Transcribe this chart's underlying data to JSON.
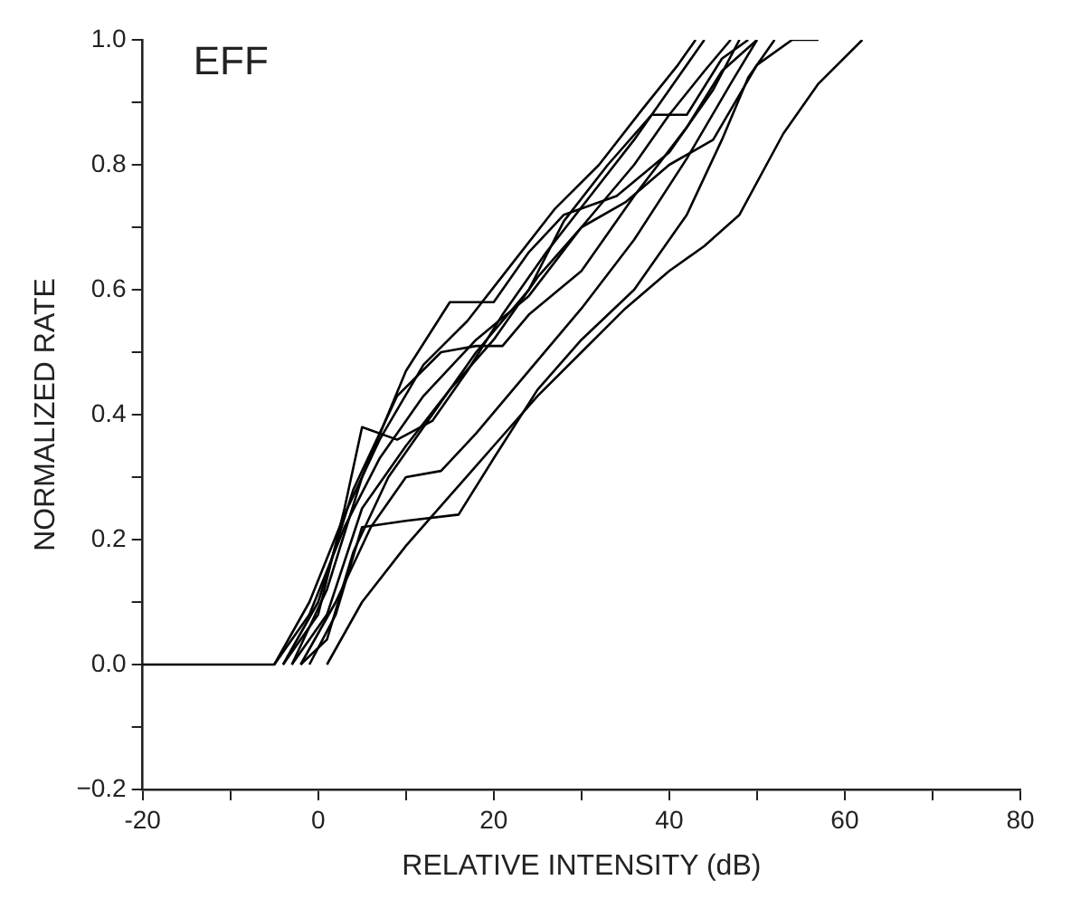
{
  "chart_data": {
    "type": "line",
    "title": "EFF",
    "xlabel": "RELATIVE INTENSITY (dB)",
    "ylabel": "NORMALIZED RATE",
    "xlim": [
      -20,
      80
    ],
    "ylim": [
      -0.2,
      1.0
    ],
    "xticks": [
      -20,
      {
        "value": -10,
        "label": null
      },
      0,
      {
        "value": 10,
        "label": null
      },
      20,
      {
        "value": 30,
        "label": null
      },
      40,
      {
        "value": 50,
        "label": null
      },
      60,
      {
        "value": 70,
        "label": null
      },
      80
    ],
    "yticks": [
      {
        "value": -0.2,
        "label": "−0.2"
      },
      {
        "value": -0.1,
        "label": null
      },
      {
        "value": 0,
        "label": "0.0"
      },
      {
        "value": 0.1,
        "label": null
      },
      {
        "value": 0.2,
        "label": "0.2"
      },
      {
        "value": 0.3,
        "label": null
      },
      {
        "value": 0.4,
        "label": "0.4"
      },
      {
        "value": 0.5,
        "label": null
      },
      {
        "value": 0.6,
        "label": "0.6"
      },
      {
        "value": 0.7,
        "label": null
      },
      {
        "value": 0.8,
        "label": "0.8"
      },
      {
        "value": 0.9,
        "label": null
      },
      {
        "value": 1.0,
        "label": "1.0"
      }
    ],
    "grid": false,
    "legend": false,
    "marker": "none",
    "line_style": "solid",
    "series": [
      {
        "color": "#000000",
        "x": [
          -20,
          -5,
          -1,
          3,
          7,
          12,
          17,
          22,
          27,
          32,
          37,
          41,
          43
        ],
        "values": [
          0,
          0,
          0.1,
          0.24,
          0.36,
          0.48,
          0.55,
          0.64,
          0.73,
          0.8,
          0.89,
          0.96,
          1.0
        ]
      },
      {
        "color": "#000000",
        "x": [
          -4,
          0,
          3,
          5,
          9,
          13,
          17,
          21,
          26,
          31,
          36,
          40,
          44
        ],
        "values": [
          0,
          0.08,
          0.25,
          0.38,
          0.36,
          0.39,
          0.47,
          0.56,
          0.66,
          0.75,
          0.84,
          0.92,
          1.0
        ]
      },
      {
        "color": "#000000",
        "x": [
          -3,
          1,
          5,
          10,
          15,
          20,
          24,
          28,
          34,
          40,
          45,
          48
        ],
        "values": [
          0,
          0.12,
          0.3,
          0.47,
          0.58,
          0.58,
          0.66,
          0.72,
          0.75,
          0.82,
          0.92,
          1.0
        ]
      },
      {
        "color": "#000000",
        "x": [
          -4,
          0,
          4,
          9,
          14,
          18,
          21,
          24,
          30,
          36,
          42,
          46,
          50
        ],
        "values": [
          0,
          0.1,
          0.28,
          0.43,
          0.5,
          0.51,
          0.51,
          0.56,
          0.63,
          0.75,
          0.86,
          0.95,
          1.0
        ]
      },
      {
        "color": "#000000",
        "x": [
          -2,
          2,
          6,
          10,
          14,
          18,
          24,
          30,
          36,
          42,
          47,
          50
        ],
        "values": [
          0,
          0.1,
          0.22,
          0.3,
          0.31,
          0.37,
          0.47,
          0.57,
          0.68,
          0.81,
          0.93,
          1.0
        ]
      },
      {
        "color": "#000000",
        "x": [
          -1,
          2,
          5,
          10,
          16,
          20,
          25,
          30,
          36,
          42,
          46,
          49,
          52
        ],
        "values": [
          0,
          0.08,
          0.22,
          0.23,
          0.24,
          0.33,
          0.44,
          0.52,
          0.6,
          0.72,
          0.84,
          0.94,
          1.0
        ]
      },
      {
        "color": "#000000",
        "x": [
          1,
          5,
          10,
          15,
          20,
          25,
          30,
          35,
          40,
          44,
          48,
          53,
          57,
          62
        ],
        "values": [
          0,
          0.1,
          0.19,
          0.27,
          0.35,
          0.43,
          0.5,
          0.57,
          0.63,
          0.67,
          0.72,
          0.85,
          0.93,
          1.0
        ]
      },
      {
        "color": "#000000",
        "x": [
          -3,
          1,
          5,
          10,
          15,
          20,
          25,
          30,
          35,
          40,
          45,
          50,
          54,
          57
        ],
        "values": [
          0,
          0.08,
          0.25,
          0.35,
          0.44,
          0.52,
          0.62,
          0.7,
          0.74,
          0.8,
          0.84,
          0.96,
          1.0,
          1.0
        ]
      },
      {
        "color": "#000000",
        "x": [
          -2,
          1,
          4,
          8,
          12,
          18,
          24,
          28,
          33,
          38,
          42,
          46,
          49
        ],
        "values": [
          0,
          0.04,
          0.18,
          0.3,
          0.38,
          0.5,
          0.6,
          0.71,
          0.8,
          0.88,
          0.88,
          0.97,
          1.0
        ]
      },
      {
        "color": "#000000",
        "x": [
          -5,
          -1,
          3,
          7,
          12,
          18,
          24,
          30,
          36,
          40,
          44,
          47
        ],
        "values": [
          0,
          0.08,
          0.22,
          0.33,
          0.43,
          0.52,
          0.59,
          0.7,
          0.8,
          0.88,
          0.95,
          1.0
        ]
      }
    ]
  }
}
